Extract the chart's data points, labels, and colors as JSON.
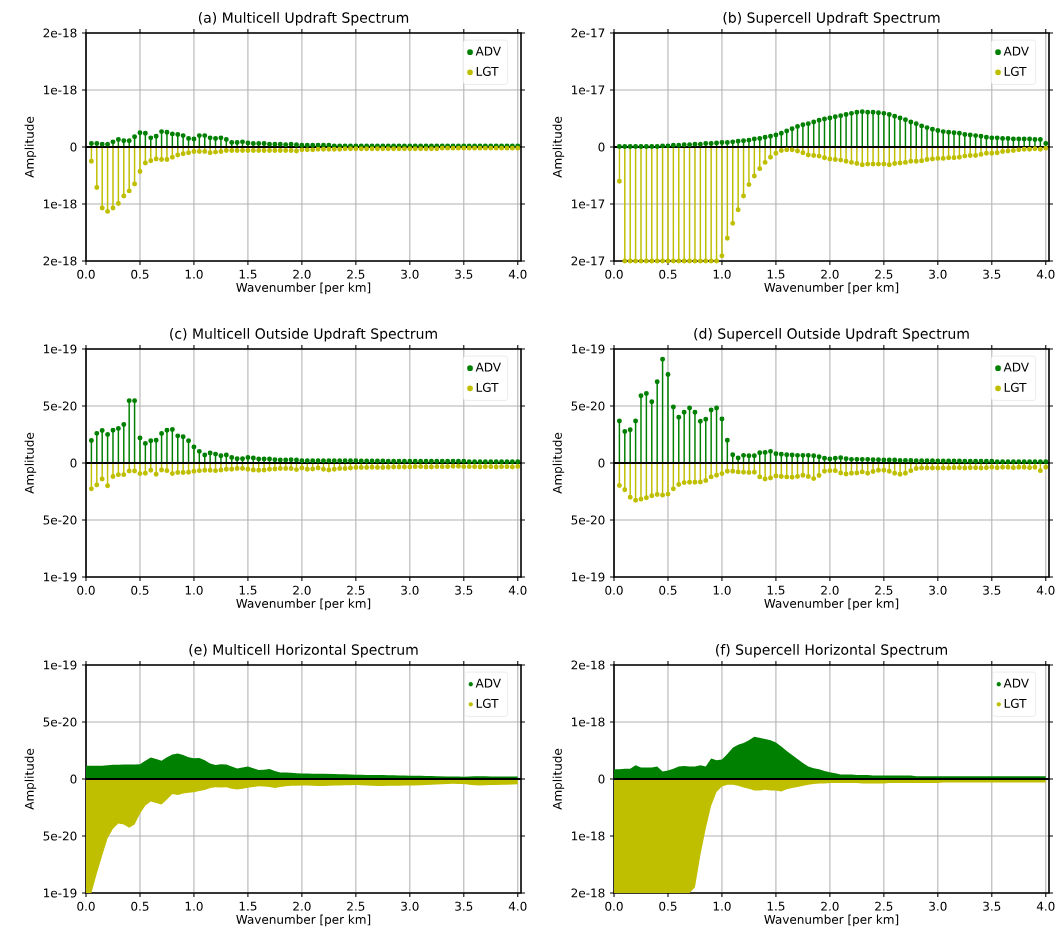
{
  "chart_data": [
    {
      "type": "lollipop",
      "title": "(a) Multicell Updraft Spectrum",
      "xlabel": "Wavenumber [per km]",
      "ylabel": "Amplitude",
      "grid": true,
      "legend": "top right",
      "marker": "circle",
      "xlim": [
        0,
        4.03
      ],
      "ylim": [
        -2e-18,
        2e-18
      ],
      "xticks": [
        {
          "value": 0,
          "label": "0.0"
        },
        0.5,
        {
          "value": 1,
          "label": "1.0"
        },
        1.5,
        {
          "value": 2,
          "label": "2.0"
        },
        2.5,
        {
          "value": 3,
          "label": "3.0"
        },
        3.5,
        {
          "value": 4,
          "label": "4.0"
        }
      ],
      "yticks": [
        {
          "value": -2e-18,
          "label": "2e-18"
        },
        {
          "value": -1e-18,
          "label": "1e-18"
        },
        0,
        {
          "value": 1e-18,
          "label": "1e-18"
        },
        {
          "value": 2e-18,
          "label": "2e-18"
        }
      ],
      "ref_lines": [
        {
          "axis": "y",
          "value": 0,
          "color": "#000000"
        }
      ],
      "x": [
        0.05,
        0.1,
        0.15,
        0.2,
        0.25,
        0.3,
        0.35,
        0.4,
        0.45,
        0.5,
        0.55,
        0.6,
        0.65,
        0.7,
        0.75,
        0.8,
        0.85,
        0.9,
        0.95,
        1.0,
        1.05,
        1.1,
        1.15,
        1.2,
        1.25,
        1.3,
        1.35,
        1.4,
        1.45,
        1.5,
        1.55,
        1.6,
        1.65,
        1.7,
        1.75,
        1.8,
        1.85,
        1.9,
        1.95,
        2.0,
        2.05,
        2.1,
        2.15,
        2.2,
        2.25,
        2.3,
        2.35,
        2.4,
        2.45,
        2.5,
        2.55,
        2.6,
        2.65,
        2.7,
        2.75,
        2.8,
        2.85,
        2.9,
        2.95,
        3.0,
        3.05,
        3.1,
        3.15,
        3.2,
        3.25,
        3.3,
        3.35,
        3.4,
        3.45,
        3.5,
        3.55,
        3.6,
        3.65,
        3.7,
        3.75,
        3.8,
        3.85,
        3.9,
        3.95,
        4.0
      ],
      "series": [
        {
          "name": "ADV",
          "color": "#008000",
          "values": [
            6e-20,
            6e-20,
            5e-20,
            5e-20,
            9e-20,
            1.3e-19,
            1.1e-19,
            1.1e-19,
            1.8e-19,
            2.5e-19,
            2.4e-19,
            1.6e-19,
            1.9e-19,
            2.7e-19,
            2.6e-19,
            2.3e-19,
            2.2e-19,
            2e-19,
            1.5e-19,
            1.4e-19,
            2e-19,
            2e-19,
            1.6e-19,
            1.5e-19,
            1.6e-19,
            1.3e-19,
            8e-20,
            8e-20,
            9e-20,
            7e-20,
            6e-20,
            6e-20,
            6e-20,
            5e-20,
            5e-20,
            5e-20,
            4e-20,
            5e-20,
            4e-20,
            3e-20,
            3e-20,
            3e-20,
            3e-20,
            3e-20,
            3e-20,
            2e-20,
            2e-20,
            2e-20,
            2e-20,
            2e-20,
            2e-20,
            2e-20,
            2e-20,
            2e-20,
            2e-20,
            2e-20,
            2e-20,
            2e-20,
            2e-20,
            2e-20,
            2e-20,
            2e-20,
            2e-20,
            2e-20,
            2e-20,
            2e-20,
            2e-20,
            2e-20,
            2e-20,
            2e-20,
            2e-20,
            2e-20,
            2e-20,
            2e-20,
            2e-20,
            2e-20,
            2e-20,
            2e-20,
            2e-20,
            2e-20
          ]
        },
        {
          "name": "LGT",
          "color": "#bfbf00",
          "values": [
            -2.5e-19,
            -7.1e-19,
            -1.07e-18,
            -1.13e-18,
            -1.07e-18,
            -9.9e-19,
            -8.6e-19,
            -7.7e-19,
            -6.5e-19,
            -4.3e-19,
            -2.8e-19,
            -2.4e-19,
            -2.1e-19,
            -2.2e-19,
            -2.2e-19,
            -1.8e-19,
            -1.4e-19,
            -1.2e-19,
            -1e-19,
            -8e-20,
            -8e-20,
            -8e-20,
            -1e-19,
            -9e-20,
            -8e-20,
            -6e-20,
            -6e-20,
            -6e-20,
            -6e-20,
            -6e-20,
            -6e-20,
            -6e-20,
            -6e-20,
            -6e-20,
            -6e-20,
            -6e-20,
            -6e-20,
            -6e-20,
            -7e-20,
            -5e-20,
            -5e-20,
            -5e-20,
            -4e-20,
            -4e-20,
            -4e-20,
            -4e-20,
            -4e-20,
            -3e-20,
            -3e-20,
            -3e-20,
            -3e-20,
            -3e-20,
            -3e-20,
            -3e-20,
            -3e-20,
            -3e-20,
            -3e-20,
            -3e-20,
            -3e-20,
            -3e-20,
            -3e-20,
            -3e-20,
            -3e-20,
            -3e-20,
            -3e-20,
            -2e-20,
            -2e-20,
            -2e-20,
            -2e-20,
            -2e-20,
            -2e-20,
            -2e-20,
            -2e-20,
            -2e-20,
            -2e-20,
            -2e-20,
            -2e-20,
            -2e-20,
            -2e-20,
            -2e-20
          ]
        }
      ]
    },
    {
      "type": "lollipop",
      "title": "(b) Supercell Updraft Spectrum",
      "xlabel": "Wavenumber [per km]",
      "ylabel": "Amplitude",
      "grid": true,
      "legend": "top right",
      "marker": "circle",
      "xlim": [
        0,
        4.03
      ],
      "ylim": [
        -2e-17,
        2e-17
      ],
      "xticks": [
        {
          "value": 0,
          "label": "0.0"
        },
        0.5,
        {
          "value": 1,
          "label": "1.0"
        },
        1.5,
        {
          "value": 2,
          "label": "2.0"
        },
        2.5,
        {
          "value": 3,
          "label": "3.0"
        },
        3.5,
        {
          "value": 4,
          "label": "4.0"
        }
      ],
      "yticks": [
        {
          "value": -2e-17,
          "label": "2e-17"
        },
        {
          "value": -1e-17,
          "label": "1e-17"
        },
        0,
        {
          "value": 1e-17,
          "label": "1e-17"
        },
        {
          "value": 2e-17,
          "label": "2e-17"
        }
      ],
      "ref_lines": [
        {
          "axis": "y",
          "value": 0,
          "color": "#000000"
        }
      ],
      "x": [
        0.05,
        0.1,
        0.15,
        0.2,
        0.25,
        0.3,
        0.35,
        0.4,
        0.45,
        0.5,
        0.55,
        0.6,
        0.65,
        0.7,
        0.75,
        0.8,
        0.85,
        0.9,
        0.95,
        1.0,
        1.05,
        1.1,
        1.15,
        1.2,
        1.25,
        1.3,
        1.35,
        1.4,
        1.45,
        1.5,
        1.55,
        1.6,
        1.65,
        1.7,
        1.75,
        1.8,
        1.85,
        1.9,
        1.95,
        2.0,
        2.05,
        2.1,
        2.15,
        2.2,
        2.25,
        2.3,
        2.35,
        2.4,
        2.45,
        2.5,
        2.55,
        2.6,
        2.65,
        2.7,
        2.75,
        2.8,
        2.85,
        2.9,
        2.95,
        3.0,
        3.05,
        3.1,
        3.15,
        3.2,
        3.25,
        3.3,
        3.35,
        3.4,
        3.45,
        3.5,
        3.55,
        3.6,
        3.65,
        3.7,
        3.75,
        3.8,
        3.85,
        3.9,
        3.95,
        4.0
      ],
      "series": [
        {
          "name": "ADV",
          "color": "#008000",
          "values": [
            1e-19,
            1e-19,
            1e-19,
            1e-19,
            1e-19,
            1e-19,
            1e-19,
            1e-19,
            2e-19,
            2e-19,
            3e-19,
            3e-19,
            4e-19,
            4e-19,
            5e-19,
            5e-19,
            6e-19,
            6e-19,
            7e-19,
            8e-19,
            8e-19,
            9e-19,
            1e-18,
            1.1e-18,
            1.2e-18,
            1.4e-18,
            1.5e-18,
            1.7e-18,
            1.9e-18,
            2.1e-18,
            2.4e-18,
            2.8e-18,
            3.2e-18,
            3.6e-18,
            3.9e-18,
            4.1e-18,
            4.4e-18,
            4.7e-18,
            4.9e-18,
            5.1e-18,
            5.3e-18,
            5.5e-18,
            5.7e-18,
            5.9e-18,
            6.1e-18,
            6.2e-18,
            6.1e-18,
            6.1e-18,
            6e-18,
            5.9e-18,
            5.7e-18,
            5.4e-18,
            5.1e-18,
            4.8e-18,
            4.4e-18,
            4.1e-18,
            3.7e-18,
            3.4e-18,
            3.1e-18,
            2.9e-18,
            2.7e-18,
            2.6e-18,
            2.5e-18,
            2.4e-18,
            2.2e-18,
            2.1e-18,
            2e-18,
            1.9e-18,
            1.7e-18,
            1.6e-18,
            1.6e-18,
            1.5e-18,
            1.5e-18,
            1.4e-18,
            1.4e-18,
            1.4e-18,
            1.4e-18,
            1.3e-18,
            1.3e-18,
            6e-19
          ]
        },
        {
          "name": "LGT",
          "color": "#bfbf00",
          "values": [
            -6e-18,
            -2e-17,
            -2e-17,
            -2e-17,
            -2e-17,
            -2e-17,
            -2e-17,
            -2e-17,
            -2e-17,
            -2e-17,
            -2e-17,
            -2e-17,
            -2e-17,
            -2e-17,
            -2e-17,
            -2e-17,
            -2e-17,
            -2e-17,
            -2e-17,
            -1.91e-17,
            -1.6e-17,
            -1.34e-17,
            -1.1e-17,
            -8.6e-18,
            -6.6e-18,
            -5.1e-18,
            -3.8e-18,
            -2.7e-18,
            -1.8e-18,
            -1.1e-18,
            -6e-19,
            -5e-19,
            -5e-19,
            -7e-19,
            -1e-18,
            -1.4e-18,
            -1.5e-18,
            -1.6e-18,
            -1.9e-18,
            -2.1e-18,
            -2.2e-18,
            -2.3e-18,
            -2.5e-18,
            -2.7e-18,
            -2.9e-18,
            -3.1e-18,
            -3e-18,
            -3e-18,
            -3e-18,
            -3e-18,
            -3.1e-18,
            -2.9e-18,
            -2.8e-18,
            -2.7e-18,
            -2.5e-18,
            -2.5e-18,
            -2.4e-18,
            -2.2e-18,
            -2.1e-18,
            -2e-18,
            -2e-18,
            -1.9e-18,
            -1.9e-18,
            -1.8e-18,
            -1.6e-18,
            -1.5e-18,
            -1.5e-18,
            -1.3e-18,
            -1.1e-18,
            -1.1e-18,
            -1e-18,
            -8e-19,
            -7e-19,
            -6e-19,
            -5e-19,
            -4e-19,
            -4e-19,
            -3e-19,
            -4e-19,
            -2e-19
          ]
        }
      ]
    },
    {
      "type": "lollipop",
      "title": "(c) Multicell Outside Updraft Spectrum",
      "xlabel": "Wavenumber [per km]",
      "ylabel": "Amplitude",
      "grid": true,
      "legend": "top right",
      "marker": "circle",
      "xlim": [
        0,
        4.03
      ],
      "ylim": [
        -1e-19,
        1e-19
      ],
      "xticks": [
        {
          "value": 0,
          "label": "0.0"
        },
        0.5,
        {
          "value": 1,
          "label": "1.0"
        },
        1.5,
        {
          "value": 2,
          "label": "2.0"
        },
        2.5,
        {
          "value": 3,
          "label": "3.0"
        },
        3.5,
        {
          "value": 4,
          "label": "4.0"
        }
      ],
      "yticks": [
        {
          "value": -1e-19,
          "label": "1e-19"
        },
        {
          "value": -5e-20,
          "label": "5e-20"
        },
        0,
        {
          "value": 5e-20,
          "label": "5e-20"
        },
        {
          "value": 1e-19,
          "label": "1e-19"
        }
      ],
      "ref_lines": [
        {
          "axis": "y",
          "value": 0,
          "color": "#000000"
        }
      ],
      "x": [
        0.05,
        0.1,
        0.15,
        0.2,
        0.25,
        0.3,
        0.35,
        0.4,
        0.45,
        0.5,
        0.55,
        0.6,
        0.65,
        0.7,
        0.75,
        0.8,
        0.85,
        0.9,
        0.95,
        1.0,
        1.05,
        1.1,
        1.15,
        1.2,
        1.25,
        1.3,
        1.35,
        1.4,
        1.45,
        1.5,
        1.55,
        1.6,
        1.65,
        1.7,
        1.75,
        1.8,
        1.85,
        1.9,
        1.95,
        2.0,
        2.05,
        2.1,
        2.15,
        2.2,
        2.25,
        2.3,
        2.35,
        2.4,
        2.45,
        2.5,
        2.55,
        2.6,
        2.65,
        2.7,
        2.75,
        2.8,
        2.85,
        2.9,
        2.95,
        3.0,
        3.05,
        3.1,
        3.15,
        3.2,
        3.25,
        3.3,
        3.35,
        3.4,
        3.45,
        3.5,
        3.55,
        3.6,
        3.65,
        3.7,
        3.75,
        3.8,
        3.85,
        3.9,
        3.95,
        4.0
      ],
      "series": [
        {
          "name": "ADV",
          "color": "#008000",
          "values": [
            1.98e-20,
            2.6e-20,
            2.85e-20,
            2.5e-20,
            2.88e-20,
            3.02e-20,
            3.37e-20,
            5.47e-20,
            5.47e-20,
            2.2e-20,
            1.72e-20,
            1.95e-20,
            2e-20,
            2.59e-20,
            2.88e-20,
            2.94e-20,
            2.38e-20,
            2.3e-20,
            1.95e-20,
            1.4e-20,
            1.02e-20,
            7e-21,
            8.7e-21,
            7.8e-21,
            6.4e-21,
            7e-21,
            4.9e-21,
            3.8e-21,
            3.8e-21,
            4.9e-21,
            4.4e-21,
            3.5e-21,
            3.5e-21,
            3.5e-21,
            2.9e-21,
            2.6e-21,
            2.6e-21,
            2.9e-21,
            2.6e-21,
            2e-21,
            2e-21,
            2e-21,
            2e-21,
            2e-21,
            2e-21,
            2e-21,
            2e-21,
            2e-21,
            2e-21,
            2e-21,
            1.7e-21,
            1.7e-21,
            1.7e-21,
            1.7e-21,
            1.7e-21,
            1.5e-21,
            1.5e-21,
            1.5e-21,
            1.5e-21,
            1.5e-21,
            1.5e-21,
            1.5e-21,
            1.5e-21,
            1.5e-21,
            1.5e-21,
            1.5e-21,
            1.5e-21,
            1.5e-21,
            1.5e-21,
            1.5e-21,
            1.2e-21,
            1.2e-21,
            1.2e-21,
            1.2e-21,
            1.2e-21,
            1.2e-21,
            1.2e-21,
            1.2e-21,
            1.2e-21,
            1.2e-21
          ]
        },
        {
          "name": "LGT",
          "color": "#bfbf00",
          "values": [
            -2.27e-20,
            -1.92e-20,
            -1.4e-20,
            -2e-20,
            -1.19e-20,
            -1.02e-20,
            -1.02e-20,
            -7e-21,
            -7e-21,
            -9.3e-21,
            -9e-21,
            -6.4e-21,
            -9.9e-21,
            -6.1e-21,
            -6.7e-21,
            -9.3e-21,
            -8.4e-21,
            -8.4e-21,
            -8.1e-21,
            -7.3e-21,
            -6.7e-21,
            -6.4e-21,
            -6.4e-21,
            -6.7e-21,
            -6.1e-21,
            -5.5e-21,
            -5.5e-21,
            -4.9e-21,
            -4.9e-21,
            -5.5e-21,
            -6.1e-21,
            -6.4e-21,
            -6.1e-21,
            -5.5e-21,
            -5.2e-21,
            -4.9e-21,
            -4.9e-21,
            -4.9e-21,
            -5.8e-21,
            -4.4e-21,
            -5.5e-21,
            -5.2e-21,
            -4.4e-21,
            -5.5e-21,
            -6.1e-21,
            -5.5e-21,
            -4.9e-21,
            -4.9e-21,
            -4.4e-21,
            -4e-21,
            -4e-21,
            -4e-21,
            -3.7e-21,
            -4e-21,
            -4e-21,
            -3.7e-21,
            -3.5e-21,
            -3.5e-21,
            -3.5e-21,
            -3.5e-21,
            -3.2e-21,
            -3.2e-21,
            -3.5e-21,
            -3.5e-21,
            -3.2e-21,
            -3.2e-21,
            -3.2e-21,
            -2.9e-21,
            -2.9e-21,
            -3.2e-21,
            -3.2e-21,
            -3.2e-21,
            -3.5e-21,
            -3.2e-21,
            -3.2e-21,
            -3.5e-21,
            -3.2e-21,
            -3.2e-21,
            -3.5e-21,
            -3e-21
          ]
        }
      ]
    },
    {
      "type": "lollipop",
      "title": "(d) Supercell Outside Updraft Spectrum",
      "xlabel": "Wavenumber [per km]",
      "ylabel": "Amplitude",
      "grid": true,
      "legend": "top right",
      "marker": "circle",
      "xlim": [
        0,
        4.03
      ],
      "ylim": [
        -1e-19,
        1e-19
      ],
      "xticks": [
        {
          "value": 0,
          "label": "0.0"
        },
        0.5,
        {
          "value": 1,
          "label": "1.0"
        },
        1.5,
        {
          "value": 2,
          "label": "2.0"
        },
        2.5,
        {
          "value": 3,
          "label": "3.0"
        },
        3.5,
        {
          "value": 4,
          "label": "4.0"
        }
      ],
      "yticks": [
        {
          "value": -1e-19,
          "label": "1e-19"
        },
        {
          "value": -5e-20,
          "label": "5e-20"
        },
        0,
        {
          "value": 5e-20,
          "label": "5e-20"
        },
        {
          "value": 1e-19,
          "label": "1e-19"
        }
      ],
      "ref_lines": [
        {
          "axis": "y",
          "value": 0,
          "color": "#000000"
        }
      ],
      "x": [
        0.05,
        0.1,
        0.15,
        0.2,
        0.25,
        0.3,
        0.35,
        0.4,
        0.45,
        0.5,
        0.55,
        0.6,
        0.65,
        0.7,
        0.75,
        0.8,
        0.85,
        0.9,
        0.95,
        1.0,
        1.05,
        1.1,
        1.15,
        1.2,
        1.25,
        1.3,
        1.35,
        1.4,
        1.45,
        1.5,
        1.55,
        1.6,
        1.65,
        1.7,
        1.75,
        1.8,
        1.85,
        1.9,
        1.95,
        2.0,
        2.05,
        2.1,
        2.15,
        2.2,
        2.25,
        2.3,
        2.35,
        2.4,
        2.45,
        2.5,
        2.55,
        2.6,
        2.65,
        2.7,
        2.75,
        2.8,
        2.85,
        2.9,
        2.95,
        3.0,
        3.05,
        3.1,
        3.15,
        3.2,
        3.25,
        3.3,
        3.35,
        3.4,
        3.45,
        3.5,
        3.55,
        3.6,
        3.65,
        3.7,
        3.75,
        3.8,
        3.85,
        3.9,
        3.95,
        4.0
      ],
      "series": [
        {
          "name": "ADV",
          "color": "#008000",
          "values": [
            3.69e-20,
            2.76e-20,
            2.91e-20,
            3.69e-20,
            5.9e-20,
            6.1e-20,
            5.38e-20,
            7.12e-20,
            9.1e-20,
            7.77e-20,
            4.91e-20,
            4.01e-20,
            4.45e-20,
            4.83e-20,
            4.45e-20,
            3.66e-20,
            3.84e-20,
            4.65e-20,
            4.83e-20,
            3.87e-20,
            2e-20,
            7.3e-21,
            4.4e-21,
            6.7e-21,
            6.4e-21,
            6.4e-21,
            9e-21,
            9.3e-21,
            1.02e-20,
            8.1e-21,
            7.6e-21,
            7.3e-21,
            7e-21,
            6.7e-21,
            6.7e-21,
            6.7e-21,
            6.4e-21,
            5.5e-21,
            4.1e-21,
            3.5e-21,
            4.1e-21,
            4.7e-21,
            3.8e-21,
            3.2e-21,
            3.2e-21,
            3.2e-21,
            3.2e-21,
            2.9e-21,
            2.9e-21,
            2.6e-21,
            2.6e-21,
            2.6e-21,
            2.3e-21,
            2.3e-21,
            2.3e-21,
            2e-21,
            2e-21,
            2e-21,
            2e-21,
            1.7e-21,
            1.7e-21,
            1.7e-21,
            1.7e-21,
            1.7e-21,
            1.5e-21,
            1.5e-21,
            1.5e-21,
            1.5e-21,
            1.5e-21,
            1.5e-21,
            1.2e-21,
            1.2e-21,
            1.2e-21,
            1.2e-21,
            1.2e-21,
            1.2e-21,
            1.2e-21,
            1.2e-21,
            1.2e-21,
            1.2e-21
          ]
        },
        {
          "name": "LGT",
          "color": "#bfbf00",
          "values": [
            -1.98e-20,
            -2.35e-20,
            -3e-20,
            -3.26e-20,
            -3.17e-20,
            -3.05e-20,
            -2.88e-20,
            -2.76e-20,
            -2.82e-20,
            -2.73e-20,
            -2.27e-20,
            -1.89e-20,
            -1.72e-20,
            -1.69e-20,
            -1.69e-20,
            -1.66e-20,
            -1.54e-20,
            -1.22e-20,
            -1.08e-20,
            -9.3e-21,
            -7.3e-21,
            -7.3e-21,
            -7.8e-21,
            -8.1e-21,
            -8.4e-21,
            -8.1e-21,
            -1.22e-20,
            -1.4e-20,
            -1.31e-20,
            -1.13e-20,
            -1.19e-20,
            -1.22e-20,
            -1.25e-20,
            -1.19e-20,
            -1.08e-20,
            -1.19e-20,
            -1.37e-20,
            -1.1e-20,
            -7.3e-21,
            -6.7e-21,
            -6.7e-21,
            -8.7e-21,
            -9.6e-21,
            -9e-21,
            -8.7e-21,
            -7.8e-21,
            -9e-21,
            -7.5e-21,
            -6.4e-21,
            -6.4e-21,
            -7.3e-21,
            -9e-21,
            -9.9e-21,
            -9e-21,
            -6.7e-21,
            -4.9e-21,
            -4.4e-21,
            -4.4e-21,
            -4.4e-21,
            -4.4e-21,
            -4.4e-21,
            -4.4e-21,
            -4.1e-21,
            -4.1e-21,
            -4.4e-21,
            -4.1e-21,
            -4.1e-21,
            -4.4e-21,
            -4.1e-21,
            -3.8e-21,
            -4.1e-21,
            -3.8e-21,
            -3.8e-21,
            -4.1e-21,
            -3.8e-21,
            -3.8e-21,
            -4.1e-21,
            -3.8e-21,
            -6.7e-21,
            -3.8e-21
          ]
        }
      ]
    },
    {
      "type": "area",
      "title": "(e) Multicell Horizontal Spectrum",
      "xlabel": "Wavenumber [per km]",
      "ylabel": "Amplitude",
      "grid": true,
      "legend": "top right",
      "xlim": [
        0,
        4.03
      ],
      "ylim": [
        -1e-19,
        1e-19
      ],
      "xticks": [
        {
          "value": 0,
          "label": "0.0"
        },
        0.5,
        {
          "value": 1,
          "label": "1.0"
        },
        1.5,
        {
          "value": 2,
          "label": "2.0"
        },
        2.5,
        {
          "value": 3,
          "label": "3.0"
        },
        3.5,
        {
          "value": 4,
          "label": "4.0"
        }
      ],
      "yticks": [
        {
          "value": -1e-19,
          "label": "1e-19"
        },
        {
          "value": -5e-20,
          "label": "5e-20"
        },
        0,
        {
          "value": 5e-20,
          "label": "5e-20"
        },
        {
          "value": 1e-19,
          "label": "1e-19"
        }
      ],
      "ref_lines": [
        {
          "axis": "y",
          "value": 0,
          "color": "#000000"
        }
      ],
      "x": [
        0,
        0.05,
        0.1,
        0.15,
        0.2,
        0.25,
        0.3,
        0.35,
        0.4,
        0.45,
        0.5,
        0.55,
        0.6,
        0.65,
        0.7,
        0.75,
        0.8,
        0.85,
        0.9,
        0.95,
        1.0,
        1.05,
        1.1,
        1.15,
        1.2,
        1.25,
        1.3,
        1.35,
        1.4,
        1.45,
        1.5,
        1.55,
        1.6,
        1.65,
        1.7,
        1.75,
        1.8,
        1.85,
        1.9,
        1.95,
        2.0,
        2.05,
        2.1,
        2.15,
        2.2,
        2.25,
        2.3,
        2.35,
        2.4,
        2.45,
        2.5,
        2.55,
        2.6,
        2.65,
        2.7,
        2.75,
        2.8,
        2.85,
        2.9,
        2.95,
        3.0,
        3.05,
        3.1,
        3.15,
        3.2,
        3.25,
        3.3,
        3.35,
        3.4,
        3.45,
        3.5,
        3.55,
        3.6,
        3.65,
        3.7,
        3.75,
        3.8,
        3.85,
        3.9,
        3.95,
        4.0
      ],
      "series": [
        {
          "name": "ADV",
          "color": "#008000",
          "values": [
            1.16e-20,
            1.16e-20,
            1.16e-20,
            1.16e-20,
            1.2e-20,
            1.25e-20,
            1.25e-20,
            1.28e-20,
            1.28e-20,
            1.28e-20,
            1.3e-20,
            1.6e-20,
            1.89e-20,
            1.75e-20,
            1.6e-20,
            1.9e-20,
            2.15e-20,
            2.24e-20,
            2.1e-20,
            1.9e-20,
            1.83e-20,
            1.85e-20,
            1.65e-20,
            1.35e-20,
            1.22e-20,
            1.3e-20,
            1.28e-20,
            1.1e-20,
            9.3e-21,
            1e-20,
            1.1e-20,
            9.5e-21,
            7.8e-21,
            8.2e-21,
            8.7e-21,
            7e-21,
            5.8e-21,
            5.6e-21,
            5.4e-21,
            5e-21,
            4.9e-21,
            4.8e-21,
            4.7e-21,
            4.6e-21,
            4.5e-21,
            4.4e-21,
            4.3e-21,
            4.2e-21,
            4.1e-21,
            4e-21,
            3.8e-21,
            3.7e-21,
            3.6e-21,
            3.5e-21,
            3.5e-21,
            3.4e-21,
            3.3e-21,
            3.2e-21,
            3.1e-21,
            3e-21,
            2.9e-21,
            2.8e-21,
            2.8e-21,
            2.7e-21,
            2.6e-21,
            2.5e-21,
            2.4e-21,
            2.3e-21,
            2.2e-21,
            2.1e-21,
            2e-21,
            2.2e-21,
            2.4e-21,
            2.5e-21,
            2.4e-21,
            2.3e-21,
            2.3e-21,
            2.2e-21,
            2.2e-21,
            2.2e-21,
            2.1e-21
          ]
        },
        {
          "name": "LGT",
          "color": "#bfbf00",
          "values": [
            -1e-19,
            -1e-19,
            -8.3e-20,
            -6.7e-20,
            -5.2e-20,
            -4.36e-20,
            -3.9e-20,
            -4e-20,
            -4.27e-20,
            -4e-20,
            -3.05e-20,
            -2.33e-20,
            -1.98e-20,
            -2.1e-20,
            -2.24e-20,
            -1.8e-20,
            -1.31e-20,
            -1.4e-20,
            -1.28e-20,
            -1.2e-20,
            -1.16e-20,
            -1.05e-20,
            -9.6e-21,
            -8e-21,
            -7.3e-21,
            -7.5e-21,
            -7.3e-21,
            -8.5e-21,
            -9.3e-21,
            -8.5e-21,
            -7.6e-21,
            -7e-21,
            -6.4e-21,
            -6.6e-21,
            -7e-21,
            -7.8e-21,
            -7e-21,
            -6.4e-21,
            -6e-21,
            -6e-21,
            -5.8e-21,
            -5.8e-21,
            -6e-21,
            -6.2e-21,
            -6.2e-21,
            -6e-21,
            -5.8e-21,
            -5.6e-21,
            -5.5e-21,
            -5.4e-21,
            -5.2e-21,
            -5.5e-21,
            -5.8e-21,
            -6e-21,
            -6.2e-21,
            -6.2e-21,
            -6e-21,
            -6e-21,
            -6e-21,
            -5.8e-21,
            -5.8e-21,
            -5.6e-21,
            -5.5e-21,
            -5.2e-21,
            -5e-21,
            -4.8e-21,
            -4.6e-21,
            -4.4e-21,
            -4.2e-21,
            -4.4e-21,
            -4.4e-21,
            -5e-21,
            -5.5e-21,
            -5.8e-21,
            -5.5e-21,
            -5.2e-21,
            -5.2e-21,
            -5e-21,
            -5e-21,
            -4.8e-21,
            -4.6e-21
          ]
        }
      ]
    },
    {
      "type": "area",
      "title": "(f) Supercell Horizontal Spectrum",
      "xlabel": "Wavenumber [per km]",
      "ylabel": "Amplitude",
      "grid": true,
      "legend": "top right",
      "xlim": [
        0,
        4.03
      ],
      "ylim": [
        -2e-18,
        2e-18
      ],
      "xticks": [
        {
          "value": 0,
          "label": "0.0"
        },
        0.5,
        {
          "value": 1,
          "label": "1.0"
        },
        1.5,
        {
          "value": 2,
          "label": "2.0"
        },
        2.5,
        {
          "value": 3,
          "label": "3.0"
        },
        3.5,
        {
          "value": 4,
          "label": "4.0"
        }
      ],
      "yticks": [
        {
          "value": -2e-18,
          "label": "2e-18"
        },
        {
          "value": -1e-18,
          "label": "1e-18"
        },
        0,
        {
          "value": 1e-18,
          "label": "1e-18"
        },
        {
          "value": 2e-18,
          "label": "2e-18"
        }
      ],
      "ref_lines": [
        {
          "axis": "y",
          "value": 0,
          "color": "#000000"
        }
      ],
      "x": [
        0,
        0.05,
        0.1,
        0.15,
        0.2,
        0.25,
        0.3,
        0.35,
        0.4,
        0.45,
        0.5,
        0.55,
        0.6,
        0.65,
        0.7,
        0.75,
        0.8,
        0.85,
        0.9,
        0.95,
        1.0,
        1.05,
        1.1,
        1.15,
        1.2,
        1.25,
        1.3,
        1.35,
        1.4,
        1.45,
        1.5,
        1.55,
        1.6,
        1.65,
        1.7,
        1.75,
        1.8,
        1.85,
        1.9,
        1.95,
        2.0,
        2.05,
        2.1,
        2.15,
        2.2,
        2.25,
        2.3,
        2.35,
        2.4,
        2.45,
        2.5,
        2.55,
        2.6,
        2.65,
        2.7,
        2.75,
        2.8,
        2.85,
        2.9,
        2.95,
        3.0,
        3.05,
        3.1,
        3.15,
        3.2,
        3.25,
        3.3,
        3.35,
        3.4,
        3.45,
        3.5,
        3.55,
        3.6,
        3.65,
        3.7,
        3.75,
        3.8,
        3.85,
        3.9,
        3.95,
        4.0
      ],
      "series": [
        {
          "name": "ADV",
          "color": "#008000",
          "values": [
            1.7e-19,
            1.7e-19,
            1.8e-19,
            1.8e-19,
            2.4e-19,
            2e-19,
            2e-19,
            2e-19,
            2.2e-19,
            1.3e-19,
            1.5e-19,
            1.8e-19,
            2.2e-19,
            2.3e-19,
            2.2e-19,
            2.2e-19,
            2.4e-19,
            2.2e-19,
            3.6e-19,
            3.3e-19,
            3.4e-19,
            4.4e-19,
            5.5e-19,
            6e-19,
            6.3e-19,
            6.8e-19,
            7.4e-19,
            7.2e-19,
            7e-19,
            6.8e-19,
            6.4e-19,
            5.7e-19,
            4.9e-19,
            4.2e-19,
            3.5e-19,
            2.8e-19,
            2.2e-19,
            1.9e-19,
            1.7e-19,
            1.4e-19,
            1.2e-19,
            1e-19,
            8e-20,
            8e-20,
            8e-20,
            7e-20,
            7e-20,
            7e-20,
            6e-20,
            6e-20,
            6e-20,
            6e-20,
            6e-20,
            6e-20,
            6e-20,
            6e-20,
            5e-20,
            5e-20,
            5e-20,
            5e-20,
            5e-20,
            5e-20,
            5e-20,
            5e-20,
            5e-20,
            5e-20,
            5e-20,
            5e-20,
            5e-20,
            5e-20,
            5e-20,
            5e-20,
            5e-20,
            5e-20,
            5e-20,
            5e-20,
            5e-20,
            5e-20,
            5e-20,
            5e-20,
            5e-20
          ]
        },
        {
          "name": "LGT",
          "color": "#bfbf00",
          "values": [
            -2e-18,
            -2e-18,
            -2e-18,
            -2e-18,
            -2e-18,
            -2e-18,
            -2e-18,
            -2e-18,
            -2e-18,
            -2e-18,
            -2e-18,
            -2e-18,
            -2e-18,
            -2e-18,
            -2e-18,
            -1.9e-18,
            -1.34e-18,
            -8.7e-19,
            -4.7e-19,
            -2.3e-19,
            -1.3e-19,
            -1e-19,
            -1e-19,
            -1.2e-19,
            -1.5e-19,
            -1.7e-19,
            -2e-19,
            -2e-19,
            -1.9e-19,
            -2e-19,
            -2e-19,
            -2.2e-19,
            -1.8e-19,
            -1.6e-19,
            -1.4e-19,
            -1.2e-19,
            -1e-19,
            -9e-20,
            -8e-20,
            -8e-20,
            -7e-20,
            -7e-20,
            -7e-20,
            -7e-20,
            -7e-20,
            -7e-20,
            -8e-20,
            -8e-20,
            -8e-20,
            -8e-20,
            -8e-20,
            -7e-20,
            -7e-20,
            -7e-20,
            -7e-20,
            -7e-20,
            -7e-20,
            -7e-20,
            -7e-20,
            -7e-20,
            -7e-20,
            -6e-20,
            -6e-20,
            -6e-20,
            -6e-20,
            -6e-20,
            -6e-20,
            -6e-20,
            -6e-20,
            -6e-20,
            -6e-20,
            -6e-20,
            -6e-20,
            -6e-20,
            -6e-20,
            -6e-20,
            -6e-20,
            -6e-20,
            -6e-20,
            -6e-20,
            -6e-20
          ]
        }
      ]
    }
  ]
}
